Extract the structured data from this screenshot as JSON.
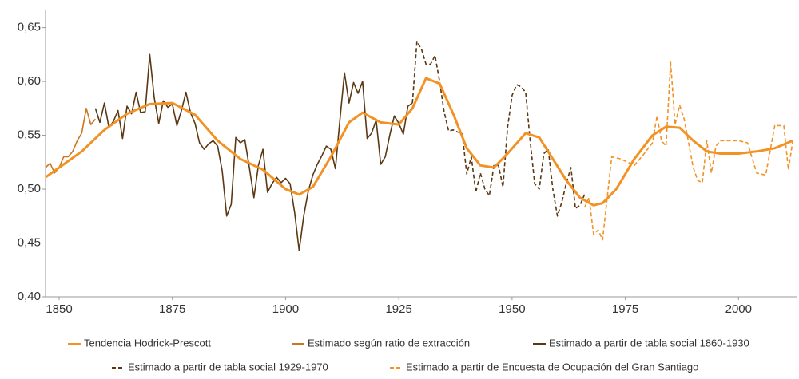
{
  "chart_data": {
    "type": "line",
    "xlim": [
      1847,
      2013
    ],
    "ylim": [
      0.4,
      0.666
    ],
    "xticks": [
      1850,
      1875,
      1900,
      1925,
      1950,
      1975,
      2000
    ],
    "yticks": [
      {
        "value": 0.4,
        "label": "0,40"
      },
      {
        "value": 0.45,
        "label": "0,45"
      },
      {
        "value": 0.5,
        "label": "0,50"
      },
      {
        "value": 0.55,
        "label": "0,55"
      },
      {
        "value": 0.6,
        "label": "0,60"
      },
      {
        "value": 0.65,
        "label": "0,65"
      }
    ],
    "grid": false,
    "series": [
      {
        "name": "Tendencia Hodrick-Prescott",
        "color": "#f39224",
        "style": "solid",
        "x": [
          1847,
          1850,
          1855,
          1860,
          1865,
          1870,
          1875,
          1880,
          1885,
          1890,
          1895,
          1900,
          1903,
          1906,
          1910,
          1914,
          1917,
          1921,
          1925,
          1928,
          1931,
          1934,
          1937,
          1940,
          1943,
          1946,
          1949,
          1953,
          1956,
          1959,
          1962,
          1965,
          1968,
          1970,
          1973,
          1977,
          1981,
          1984,
          1987,
          1990,
          1993,
          1996,
          2000,
          2004,
          2008,
          2012
        ],
        "values": [
          0.511,
          0.52,
          0.535,
          0.555,
          0.57,
          0.579,
          0.58,
          0.569,
          0.545,
          0.528,
          0.518,
          0.5,
          0.495,
          0.502,
          0.53,
          0.562,
          0.571,
          0.562,
          0.56,
          0.575,
          0.603,
          0.598,
          0.57,
          0.538,
          0.522,
          0.52,
          0.533,
          0.552,
          0.548,
          0.528,
          0.508,
          0.492,
          0.485,
          0.487,
          0.5,
          0.528,
          0.55,
          0.558,
          0.557,
          0.545,
          0.535,
          0.533,
          0.533,
          0.535,
          0.538,
          0.545
        ]
      },
      {
        "name": "Estimado según ratio de extracción",
        "color": "#c8781e",
        "style": "solid",
        "x": [
          1847,
          1848,
          1849,
          1850,
          1851,
          1852,
          1853,
          1854,
          1855,
          1856,
          1857,
          1858
        ],
        "values": [
          0.52,
          0.524,
          0.515,
          0.52,
          0.53,
          0.53,
          0.535,
          0.545,
          0.552,
          0.575,
          0.56,
          0.565
        ]
      },
      {
        "name": "Estimado a partir de tabla social 1860-1930",
        "color": "#5a3812",
        "style": "solid",
        "x": [
          1858,
          1859,
          1860,
          1861,
          1862,
          1863,
          1864,
          1865,
          1866,
          1867,
          1868,
          1869,
          1870,
          1871,
          1872,
          1873,
          1874,
          1875,
          1876,
          1877,
          1878,
          1879,
          1880,
          1881,
          1882,
          1883,
          1884,
          1885,
          1886,
          1887,
          1888,
          1889,
          1890,
          1891,
          1892,
          1893,
          1894,
          1895,
          1896,
          1897,
          1898,
          1899,
          1900,
          1901,
          1902,
          1903,
          1904,
          1905,
          1906,
          1907,
          1908,
          1909,
          1910,
          1911,
          1912,
          1913,
          1914,
          1915,
          1916,
          1917,
          1918,
          1919,
          1920,
          1921,
          1922,
          1923,
          1924,
          1925,
          1926,
          1927,
          1928
        ],
        "values": [
          0.575,
          0.562,
          0.58,
          0.557,
          0.563,
          0.573,
          0.547,
          0.577,
          0.57,
          0.59,
          0.571,
          0.572,
          0.625,
          0.585,
          0.561,
          0.582,
          0.576,
          0.579,
          0.559,
          0.573,
          0.59,
          0.571,
          0.561,
          0.543,
          0.537,
          0.542,
          0.545,
          0.54,
          0.517,
          0.475,
          0.486,
          0.548,
          0.543,
          0.546,
          0.52,
          0.492,
          0.522,
          0.537,
          0.497,
          0.505,
          0.511,
          0.506,
          0.51,
          0.505,
          0.478,
          0.443,
          0.475,
          0.498,
          0.513,
          0.523,
          0.531,
          0.54,
          0.537,
          0.519,
          0.565,
          0.608,
          0.58,
          0.599,
          0.589,
          0.6,
          0.547,
          0.552,
          0.564,
          0.523,
          0.53,
          0.55,
          0.568,
          0.561,
          0.551,
          0.577,
          0.58
        ]
      },
      {
        "name": "Estimado a partir de tabla social 1929-1970",
        "color": "#5a3812",
        "style": "dashed",
        "x": [
          1928,
          1929,
          1930,
          1931,
          1932,
          1933,
          1934,
          1935,
          1936,
          1937,
          1938,
          1939,
          1940,
          1941,
          1942,
          1943,
          1944,
          1945,
          1946,
          1947,
          1948,
          1949,
          1950,
          1951,
          1952,
          1953,
          1954,
          1955,
          1956,
          1957,
          1958,
          1959,
          1960,
          1961,
          1962,
          1963,
          1964,
          1965,
          1966
        ],
        "values": [
          0.58,
          0.637,
          0.63,
          0.616,
          0.616,
          0.624,
          0.6,
          0.572,
          0.554,
          0.555,
          0.553,
          0.552,
          0.514,
          0.53,
          0.497,
          0.515,
          0.5,
          0.494,
          0.522,
          0.522,
          0.502,
          0.557,
          0.587,
          0.597,
          0.595,
          0.59,
          0.545,
          0.505,
          0.5,
          0.533,
          0.537,
          0.5,
          0.475,
          0.488,
          0.506,
          0.52,
          0.482,
          0.485,
          0.495
        ]
      },
      {
        "name": "Estimado a partir de Encuesta de Ocupación del Gran Santiago",
        "color": "#f39224",
        "style": "dashed",
        "x": [
          1966,
          1967,
          1968,
          1969,
          1970,
          1972,
          1974,
          1977,
          1979,
          1981,
          1982,
          1983,
          1984,
          1985,
          1986,
          1987,
          1988,
          1990,
          1991,
          1992,
          1993,
          1994,
          1995,
          1996,
          1998,
          2000,
          2002,
          2004,
          2006,
          2008,
          2010,
          2011,
          2012
        ],
        "values": [
          0.483,
          0.492,
          0.458,
          0.462,
          0.453,
          0.53,
          0.528,
          0.522,
          0.532,
          0.543,
          0.568,
          0.545,
          0.54,
          0.618,
          0.56,
          0.578,
          0.565,
          0.52,
          0.508,
          0.506,
          0.545,
          0.515,
          0.54,
          0.545,
          0.545,
          0.545,
          0.543,
          0.515,
          0.513,
          0.559,
          0.559,
          0.518,
          0.545
        ]
      }
    ]
  }
}
